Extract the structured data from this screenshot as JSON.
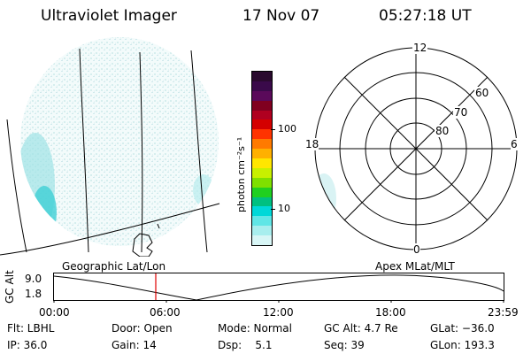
{
  "header": {
    "instrument": "Ultraviolet Imager",
    "date": "17 Nov 07",
    "time": "05:27:18 UT"
  },
  "colorbar": {
    "unit_label": "photon cm⁻²s⁻¹",
    "ticks": [
      "100",
      "10"
    ],
    "colors": [
      "#2a0a2e",
      "#3a0a4a",
      "#5a0a5a",
      "#800020",
      "#b00020",
      "#d40000",
      "#ff3300",
      "#ff7a00",
      "#ffb000",
      "#ffe600",
      "#c8f000",
      "#7fe000",
      "#20d020",
      "#00c080",
      "#00d8d8",
      "#60e6e6",
      "#a8eeee",
      "#d8f6f6"
    ]
  },
  "polar": {
    "labels": {
      "top": "12",
      "left": "18",
      "right": "6",
      "bottom": "0"
    },
    "ring_labels": [
      "60",
      "70",
      "80"
    ]
  },
  "timeline": {
    "ylabel": "GC Alt",
    "ymax": "9.0",
    "ymin": "1.8",
    "left_caption": "Geographic Lat/Lon",
    "right_caption": "Apex MLat/MLT",
    "ticks": [
      "00:00",
      "06:00",
      "12:00",
      "18:00",
      "23:59"
    ],
    "marker_color": "#e00000"
  },
  "info": {
    "flt": "Flt: LBHL",
    "ip": "IP: 36.0",
    "door": "Door: Open",
    "gain": "Gain: 14",
    "mode": "Mode: Normal",
    "dsp": "Dsp:    5.1",
    "gcalt": "GC Alt: 4.7 Re",
    "seq": "Seq: 39",
    "glat": "GLat: −36.0",
    "glon": "GLon: 193.3"
  }
}
